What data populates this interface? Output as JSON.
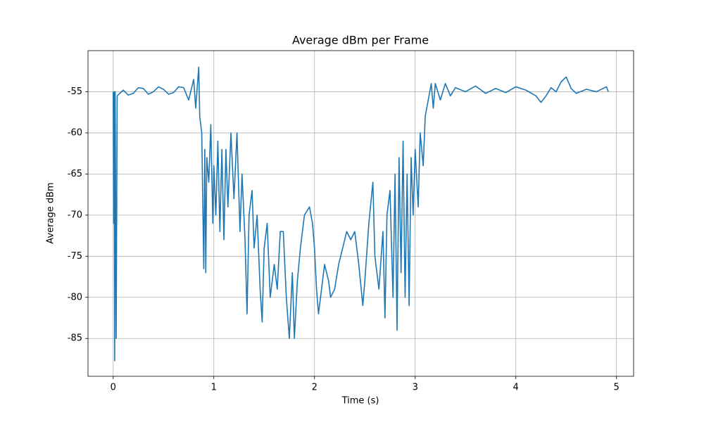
{
  "chart_data": {
    "type": "line",
    "title": "Average dBm per Frame",
    "x_label": "Time (s)",
    "y_label": "Average dBm",
    "xlim": [
      -0.25,
      5.17
    ],
    "ylim": [
      -89.6,
      -50.0
    ],
    "xticks": [
      0,
      1,
      2,
      3,
      4,
      5
    ],
    "yticks": [
      -85,
      -80,
      -75,
      -70,
      -65,
      -60,
      -55
    ],
    "grid": true,
    "series": [
      {
        "color": "#1f77b4",
        "x": [
          0,
          0.005,
          0.01,
          0.015,
          0.02,
          0.03,
          0.04,
          0.1,
          0.15,
          0.2,
          0.25,
          0.3,
          0.35,
          0.4,
          0.45,
          0.5,
          0.55,
          0.6,
          0.65,
          0.7,
          0.75,
          0.8,
          0.82,
          0.85,
          0.86,
          0.88,
          0.9,
          0.91,
          0.92,
          0.93,
          0.95,
          0.97,
          0.99,
          1.0,
          1.02,
          1.04,
          1.06,
          1.08,
          1.1,
          1.12,
          1.14,
          1.17,
          1.2,
          1.23,
          1.26,
          1.28,
          1.31,
          1.33,
          1.35,
          1.38,
          1.4,
          1.43,
          1.46,
          1.48,
          1.5,
          1.53,
          1.56,
          1.6,
          1.63,
          1.66,
          1.69,
          1.72,
          1.75,
          1.78,
          1.8,
          1.83,
          1.86,
          1.9,
          1.95,
          1.98,
          2.0,
          2.02,
          2.04,
          2.08,
          2.1,
          2.14,
          2.16,
          2.2,
          2.24,
          2.28,
          2.32,
          2.36,
          2.4,
          2.44,
          2.48,
          2.5,
          2.54,
          2.58,
          2.6,
          2.64,
          2.68,
          2.7,
          2.72,
          2.75,
          2.78,
          2.8,
          2.82,
          2.84,
          2.86,
          2.88,
          2.9,
          2.92,
          2.94,
          2.96,
          2.98,
          3.0,
          3.03,
          3.05,
          3.08,
          3.1,
          3.13,
          3.16,
          3.18,
          3.2,
          3.25,
          3.3,
          3.35,
          3.4,
          3.5,
          3.6,
          3.7,
          3.8,
          3.9,
          4.0,
          4.1,
          4.2,
          4.25,
          4.3,
          4.35,
          4.4,
          4.45,
          4.5,
          4.55,
          4.6,
          4.7,
          4.8,
          4.9,
          4.92
        ],
        "values": [
          -55,
          -71,
          -55,
          -87.7,
          -55,
          -85,
          -55.5,
          -54.8,
          -55.4,
          -55.2,
          -54.5,
          -54.6,
          -55.3,
          -55.0,
          -54.4,
          -54.7,
          -55.3,
          -55.1,
          -54.4,
          -54.5,
          -56,
          -53.5,
          -57,
          -52,
          -58,
          -60,
          -76.5,
          -62,
          -77,
          -63,
          -66,
          -59,
          -71,
          -64,
          -70,
          -61,
          -72,
          -62,
          -73,
          -62,
          -69,
          -60,
          -68,
          -60,
          -72,
          -65,
          -73,
          -82,
          -70,
          -67,
          -74,
          -70,
          -79,
          -83,
          -74,
          -71,
          -80,
          -76,
          -79,
          -72,
          -72,
          -80,
          -85,
          -77,
          -85,
          -78,
          -74,
          -70,
          -69,
          -71,
          -74,
          -79,
          -82,
          -78,
          -76,
          -78,
          -80,
          -79,
          -76,
          -74,
          -72,
          -73,
          -72,
          -76,
          -81,
          -78,
          -71,
          -66,
          -75,
          -79,
          -72,
          -82.5,
          -70,
          -67,
          -80,
          -65,
          -84,
          -63,
          -77,
          -61,
          -80,
          -65,
          -81,
          -63,
          -70,
          -62,
          -69,
          -60,
          -64,
          -58,
          -56,
          -54,
          -57,
          -54,
          -56,
          -54,
          -55.5,
          -54.5,
          -55,
          -54.3,
          -55.2,
          -54.6,
          -55.1,
          -54.4,
          -54.8,
          -55.5,
          -56.3,
          -55.5,
          -54.5,
          -55,
          -53.8,
          -53.2,
          -54.6,
          -55.2,
          -54.7,
          -55,
          -54.4,
          -55
        ]
      }
    ]
  }
}
